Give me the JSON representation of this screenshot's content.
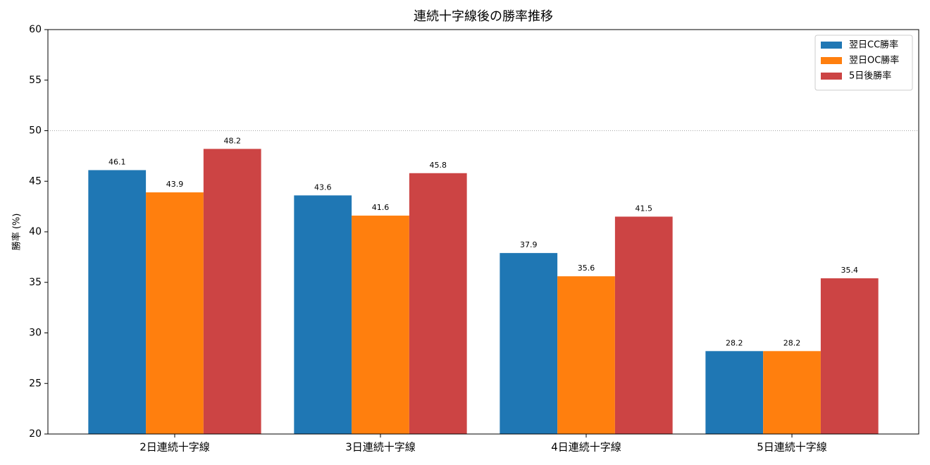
{
  "chart_data": {
    "type": "bar",
    "title": "連続十字線後の勝率推移",
    "ylabel": "勝率 (%)",
    "categories": [
      "2日連続十字線",
      "3日連続十字線",
      "4日連続十字線",
      "5日連続十字線"
    ],
    "series": [
      {
        "name": "翌日CC勝率",
        "color": "#1f77b4",
        "values": [
          46.1,
          43.6,
          37.9,
          28.2
        ]
      },
      {
        "name": "翌日OC勝率",
        "color": "#ff7f0e",
        "values": [
          43.9,
          41.6,
          35.6,
          28.2
        ]
      },
      {
        "name": "5日後勝率",
        "color": "#cc4444",
        "values": [
          48.2,
          45.8,
          41.5,
          35.4
        ]
      }
    ],
    "ylim": [
      20,
      60
    ],
    "yticks": [
      20,
      25,
      30,
      35,
      40,
      45,
      50,
      55,
      60
    ],
    "reference_line": 50,
    "legend": "upper-right"
  }
}
